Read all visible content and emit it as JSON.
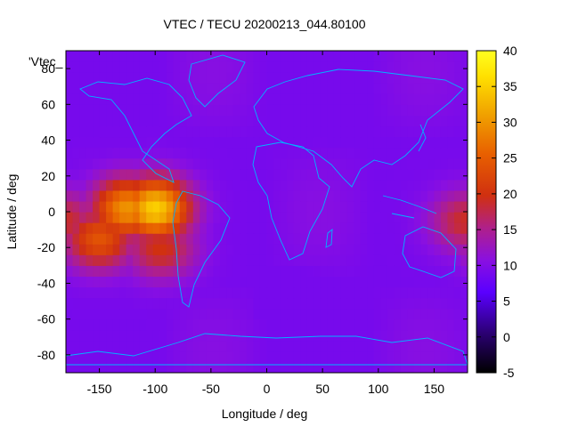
{
  "chart_data": {
    "type": "heatmap",
    "title": "VTEC / TECU 20200213_044.80100",
    "xlabel": "Longitude / deg",
    "ylabel": "Latitude / deg",
    "corner_label": "'Vtec_",
    "xlim": [
      -180,
      180
    ],
    "ylim": [
      -90,
      90
    ],
    "x_ticks": [
      "-150",
      "-100",
      "-50",
      "0",
      "50",
      "100",
      "150"
    ],
    "x_tick_values": [
      -150,
      -100,
      -50,
      0,
      50,
      100,
      150
    ],
    "y_ticks": [
      "-80",
      "-60",
      "-40",
      "-20",
      "0",
      "20",
      "40",
      "60",
      "80"
    ],
    "y_tick_values": [
      -80,
      -60,
      -40,
      -20,
      0,
      20,
      40,
      60,
      80
    ],
    "colorbar": {
      "range": [
        -5,
        40
      ],
      "ticks": [
        "-5",
        "0",
        "5",
        "10",
        "15",
        "20",
        "25",
        "30",
        "35",
        "40"
      ],
      "tick_values": [
        -5,
        0,
        5,
        10,
        15,
        20,
        25,
        30,
        35,
        40
      ]
    },
    "grid": false,
    "background_value": 9,
    "features": [
      {
        "lon": -125,
        "lat": 2,
        "peak": 30
      },
      {
        "lon": -100,
        "lat": 2,
        "peak": 35
      },
      {
        "lon": -150,
        "lat": -15,
        "peak": 24
      },
      {
        "lon": -95,
        "lat": -20,
        "peak": 20
      },
      {
        "lon": 178,
        "lat": -5,
        "peak": 19
      }
    ],
    "coastline_color": "#00b4ff"
  }
}
